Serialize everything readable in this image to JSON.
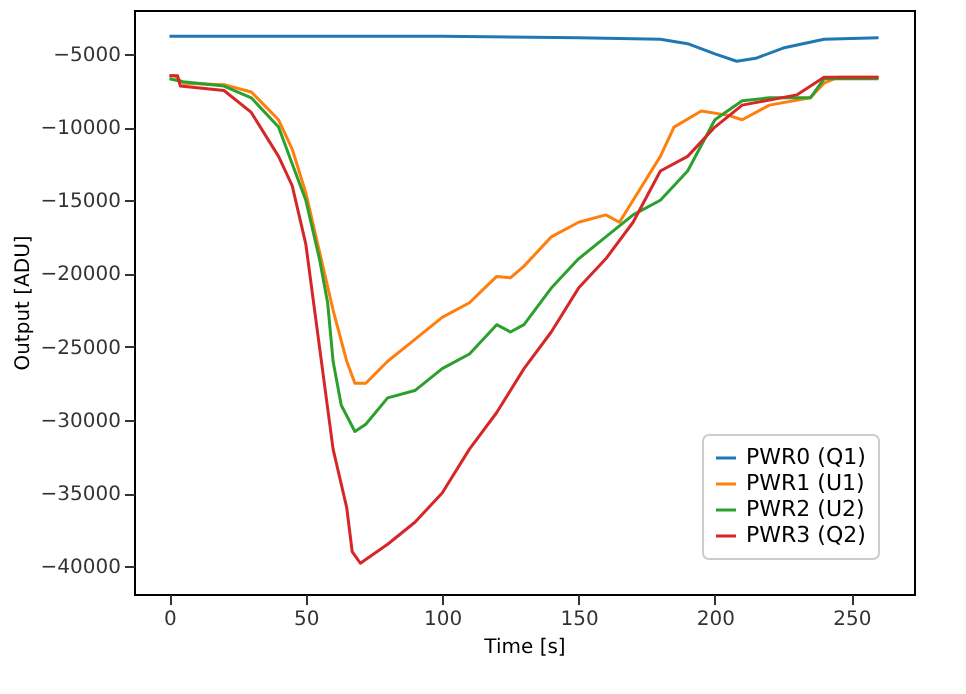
{
  "chart_data": {
    "type": "line",
    "xlabel": "Time [s]",
    "ylabel": "Output [ADU]",
    "xlim": [
      -13,
      273
    ],
    "ylim": [
      -41900,
      -2000
    ],
    "xticks": [
      0,
      50,
      100,
      150,
      200,
      250
    ],
    "yticks": [
      -40000,
      -35000,
      -30000,
      -25000,
      -20000,
      -15000,
      -10000,
      -5000
    ],
    "grid": false,
    "legend": "bottom right",
    "line_style": "solid",
    "marker": "none",
    "series": [
      {
        "name": "PWR0 (Q1)",
        "color": "#1f77b4",
        "x": [
          0,
          50,
          100,
          150,
          180,
          190,
          200,
          208,
          215,
          225,
          240,
          260
        ],
        "values": [
          -3800,
          -3800,
          -3800,
          -3900,
          -4000,
          -4300,
          -5000,
          -5500,
          -5300,
          -4600,
          -4000,
          -3900
        ]
      },
      {
        "name": "PWR1 (U1)",
        "color": "#ff7f0e",
        "x": [
          0,
          2,
          5,
          20,
          30,
          40,
          45,
          50,
          55,
          60,
          65,
          68,
          72,
          80,
          90,
          100,
          110,
          120,
          125,
          130,
          140,
          150,
          160,
          165,
          170,
          180,
          185,
          195,
          205,
          210,
          220,
          235,
          240,
          245,
          260
        ],
        "values": [
          -6500,
          -6500,
          -7000,
          -7100,
          -7600,
          -9500,
          -11500,
          -14500,
          -18500,
          -22500,
          -26000,
          -27500,
          -27500,
          -26000,
          -24500,
          -23000,
          -22000,
          -20200,
          -20300,
          -19500,
          -17500,
          -16500,
          -16000,
          -16500,
          -15000,
          -12000,
          -10000,
          -8900,
          -9200,
          -9500,
          -8500,
          -8000,
          -7000,
          -6600,
          -6600
        ]
      },
      {
        "name": "PWR2 (U2)",
        "color": "#2ca02c",
        "x": [
          0,
          5,
          20,
          30,
          40,
          45,
          50,
          55,
          58,
          60,
          63,
          68,
          72,
          80,
          90,
          100,
          110,
          120,
          125,
          130,
          140,
          150,
          160,
          170,
          180,
          190,
          200,
          210,
          220,
          235,
          240,
          260
        ],
        "values": [
          -6700,
          -6900,
          -7200,
          -8000,
          -10000,
          -12500,
          -15000,
          -19000,
          -22000,
          -26000,
          -29000,
          -30800,
          -30300,
          -28500,
          -28000,
          -26500,
          -25500,
          -23500,
          -24000,
          -23500,
          -21000,
          -19000,
          -17500,
          -16000,
          -15000,
          -13000,
          -9500,
          -8200,
          -8000,
          -8000,
          -6700,
          -6700
        ]
      },
      {
        "name": "PWR3 (Q2)",
        "color": "#d62728",
        "x": [
          0,
          3,
          4,
          20,
          30,
          40,
          45,
          50,
          55,
          60,
          65,
          67,
          70,
          80,
          90,
          100,
          110,
          120,
          130,
          140,
          150,
          160,
          170,
          180,
          190,
          200,
          210,
          230,
          240,
          260
        ],
        "values": [
          -6500,
          -6500,
          -7200,
          -7500,
          -9000,
          -12000,
          -14000,
          -18000,
          -25000,
          -32000,
          -36000,
          -39000,
          -39800,
          -38500,
          -37000,
          -35000,
          -32000,
          -29500,
          -26500,
          -24000,
          -21000,
          -19000,
          -16500,
          -13000,
          -12000,
          -10000,
          -8500,
          -7800,
          -6600,
          -6600
        ]
      }
    ]
  }
}
